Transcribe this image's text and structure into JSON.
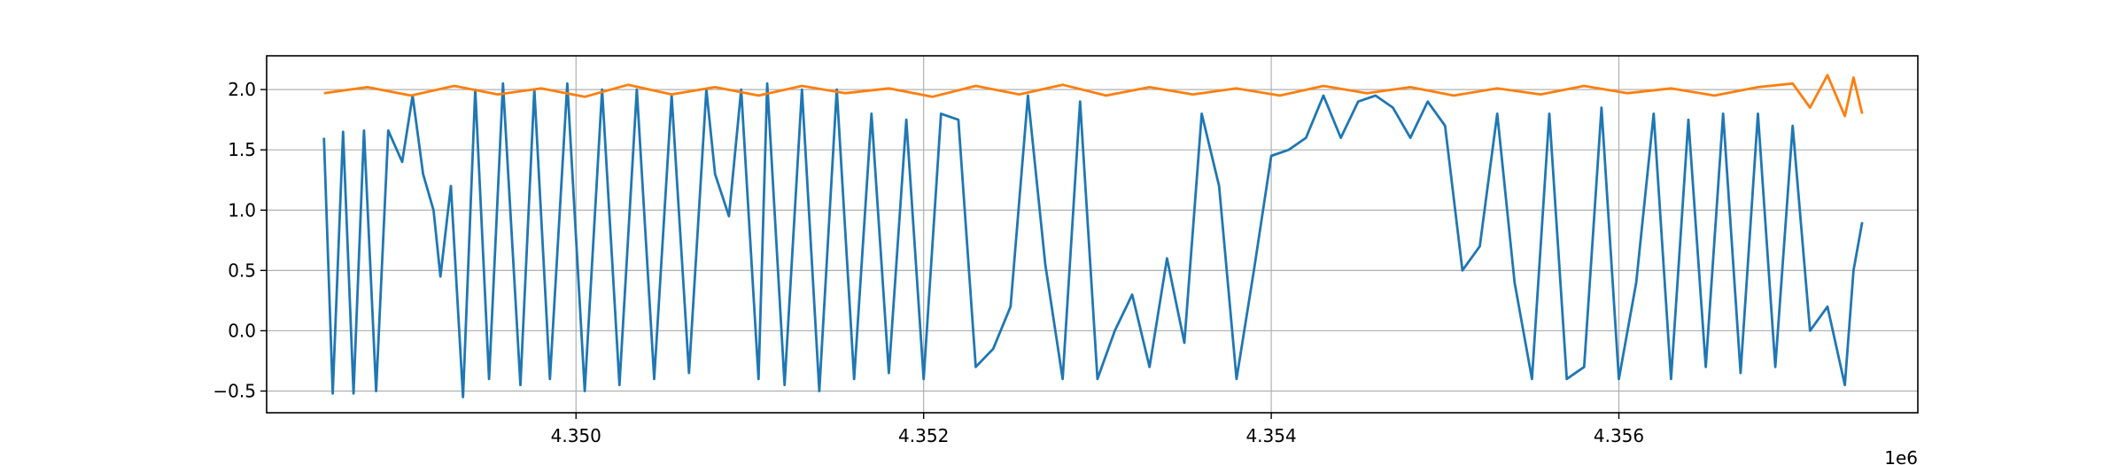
{
  "chart_data": {
    "type": "line",
    "title": "",
    "xlabel": "",
    "ylabel": "",
    "x_offset_label": "1e6",
    "xlim": [
      4.34822,
      4.35772
    ],
    "ylim": [
      -0.68,
      2.28
    ],
    "x_ticks": [
      {
        "value": 4.35,
        "label": "4.350"
      },
      {
        "value": 4.352,
        "label": "4.352"
      },
      {
        "value": 4.354,
        "label": "4.354"
      },
      {
        "value": 4.356,
        "label": "4.356"
      }
    ],
    "y_ticks": [
      {
        "value": 2.0,
        "label": "2.0"
      },
      {
        "value": 1.5,
        "label": "1.5"
      },
      {
        "value": 1.0,
        "label": "1.0"
      },
      {
        "value": 0.5,
        "label": "0.5"
      },
      {
        "value": 0.0,
        "label": "0.0"
      },
      {
        "value": -0.5,
        "label": "−0.5"
      }
    ],
    "grid": true,
    "series": [
      {
        "color": "#1f77b4",
        "x": [
          4.34855,
          4.3486,
          4.34866,
          4.34872,
          4.34878,
          4.34885,
          4.34892,
          4.349,
          4.34906,
          4.34912,
          4.34918,
          4.34922,
          4.34928,
          4.34935,
          4.34942,
          4.3495,
          4.34958,
          4.34968,
          4.34976,
          4.34985,
          4.34995,
          4.35005,
          4.35015,
          4.35025,
          4.35035,
          4.35045,
          4.35055,
          4.35065,
          4.35075,
          4.3508,
          4.35088,
          4.35095,
          4.35105,
          4.3511,
          4.3512,
          4.3513,
          4.3514,
          4.3515,
          4.3516,
          4.3517,
          4.3518,
          4.3519,
          4.352,
          4.3521,
          4.3522,
          4.3523,
          4.3524,
          4.3525,
          4.3526,
          4.3527,
          4.3528,
          4.3529,
          4.353,
          4.3531,
          4.3532,
          4.3533,
          4.3534,
          4.3535,
          4.3536,
          4.3537,
          4.3538,
          4.3539,
          4.354,
          4.3541,
          4.3542,
          4.3543,
          4.3544,
          4.3545,
          4.3546,
          4.3547,
          4.3548,
          4.3549,
          4.355,
          4.3551,
          4.3552,
          4.3553,
          4.3554,
          4.3555,
          4.3556,
          4.3557,
          4.3558,
          4.3559,
          4.356,
          4.3561,
          4.3562,
          4.3563,
          4.3564,
          4.3565,
          4.3566,
          4.3567,
          4.3568,
          4.3569,
          4.357,
          4.3571,
          4.3572,
          4.3573,
          4.35735,
          4.3574
        ],
        "values": [
          1.6,
          -0.52,
          1.65,
          -0.52,
          1.66,
          -0.5,
          1.66,
          1.4,
          1.95,
          1.3,
          1.0,
          0.45,
          1.2,
          -0.55,
          2.0,
          -0.4,
          2.05,
          -0.45,
          2.0,
          -0.4,
          2.05,
          -0.5,
          2.0,
          -0.45,
          2.0,
          -0.4,
          1.95,
          -0.35,
          2.0,
          1.3,
          0.95,
          2.0,
          -0.4,
          2.05,
          -0.45,
          2.0,
          -0.5,
          2.0,
          -0.4,
          1.8,
          -0.35,
          1.75,
          -0.4,
          1.8,
          1.75,
          -0.3,
          -0.15,
          0.2,
          1.95,
          0.55,
          -0.4,
          1.9,
          -0.4,
          0.0,
          0.3,
          -0.3,
          0.6,
          -0.1,
          1.8,
          1.2,
          -0.4,
          0.5,
          1.45,
          1.5,
          1.6,
          1.95,
          1.6,
          1.9,
          1.95,
          1.85,
          1.6,
          1.9,
          1.7,
          0.5,
          0.7,
          1.8,
          0.4,
          -0.4,
          1.8,
          -0.4,
          -0.3,
          1.85,
          -0.4,
          0.4,
          1.8,
          -0.4,
          1.75,
          -0.3,
          1.8,
          -0.35,
          1.8,
          -0.3,
          1.7,
          0.0,
          0.2,
          -0.45,
          0.5,
          0.9
        ]
      },
      {
        "color": "#ff7f0e",
        "x": [
          4.34855,
          4.3488,
          4.34905,
          4.3493,
          4.34955,
          4.3498,
          4.35005,
          4.3503,
          4.35055,
          4.3508,
          4.35105,
          4.3513,
          4.35155,
          4.3518,
          4.35205,
          4.3523,
          4.35255,
          4.3528,
          4.35305,
          4.3533,
          4.35355,
          4.3538,
          4.35405,
          4.3543,
          4.35455,
          4.3548,
          4.35505,
          4.3553,
          4.35555,
          4.3558,
          4.35605,
          4.3563,
          4.35655,
          4.3568,
          4.357,
          4.3571,
          4.3572,
          4.3573,
          4.35735,
          4.3574
        ],
        "values": [
          1.97,
          2.02,
          1.95,
          2.03,
          1.96,
          2.01,
          1.94,
          2.04,
          1.96,
          2.02,
          1.95,
          2.03,
          1.97,
          2.01,
          1.94,
          2.03,
          1.96,
          2.04,
          1.95,
          2.02,
          1.96,
          2.01,
          1.95,
          2.03,
          1.97,
          2.02,
          1.95,
          2.01,
          1.96,
          2.03,
          1.97,
          2.01,
          1.95,
          2.02,
          2.05,
          1.85,
          2.12,
          1.78,
          2.1,
          1.8
        ]
      }
    ]
  }
}
